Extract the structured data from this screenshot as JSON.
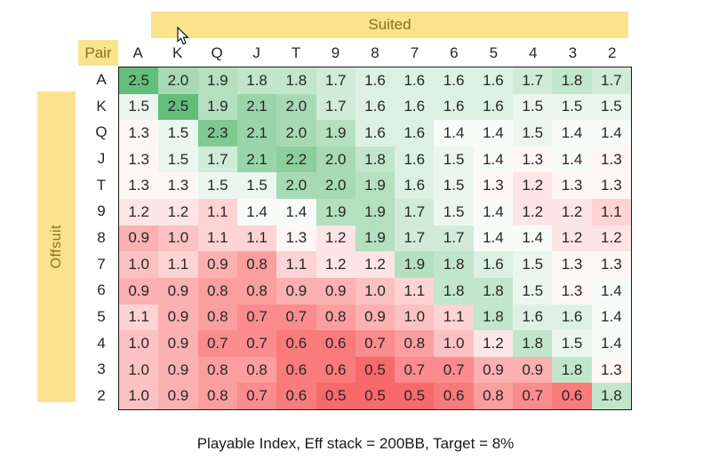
{
  "banners": {
    "suited": "Suited",
    "offsuit": "Offsuit",
    "pair": "Pair"
  },
  "caption": "Playable Index, Eff stack = 200BB, Target = 8%",
  "colors": {
    "banner_bg": "#FBE28D",
    "banner_text": "#8F701C",
    "grid_border": "#1A1A1A",
    "cell_text": "#262626"
  },
  "chart_data": {
    "type": "heatmap",
    "title": "Playable Index, Eff stack = 200BB, Target = 8%",
    "columns": [
      "A",
      "K",
      "Q",
      "J",
      "T",
      "9",
      "8",
      "7",
      "6",
      "5",
      "4",
      "3",
      "2"
    ],
    "rows": [
      "A",
      "K",
      "Q",
      "J",
      "T",
      "9",
      "8",
      "7",
      "6",
      "5",
      "4",
      "3",
      "2"
    ],
    "upper_triangle_label": "Suited",
    "lower_triangle_label": "Offsuit",
    "diagonal_label": "Pair",
    "value_format": "0.0",
    "values": [
      [
        2.5,
        2.0,
        1.9,
        1.8,
        1.8,
        1.7,
        1.6,
        1.6,
        1.6,
        1.6,
        1.7,
        1.8,
        1.7
      ],
      [
        1.5,
        2.5,
        1.9,
        2.1,
        2.0,
        1.7,
        1.6,
        1.6,
        1.6,
        1.6,
        1.5,
        1.5,
        1.5
      ],
      [
        1.3,
        1.5,
        2.3,
        2.1,
        2.0,
        1.9,
        1.6,
        1.6,
        1.4,
        1.4,
        1.5,
        1.4,
        1.4
      ],
      [
        1.3,
        1.5,
        1.7,
        2.1,
        2.2,
        2.0,
        1.8,
        1.6,
        1.5,
        1.4,
        1.3,
        1.4,
        1.3
      ],
      [
        1.3,
        1.3,
        1.5,
        1.5,
        2.0,
        2.0,
        1.9,
        1.6,
        1.5,
        1.3,
        1.2,
        1.3,
        1.3
      ],
      [
        1.2,
        1.2,
        1.1,
        1.4,
        1.4,
        1.9,
        1.9,
        1.7,
        1.5,
        1.4,
        1.2,
        1.2,
        1.1
      ],
      [
        0.9,
        1.0,
        1.1,
        1.1,
        1.3,
        1.2,
        1.9,
        1.7,
        1.7,
        1.4,
        1.4,
        1.2,
        1.2
      ],
      [
        1.0,
        1.1,
        0.9,
        0.8,
        1.1,
        1.2,
        1.2,
        1.9,
        1.8,
        1.6,
        1.5,
        1.3,
        1.3
      ],
      [
        0.9,
        0.9,
        0.8,
        0.8,
        0.9,
        0.9,
        1.0,
        1.1,
        1.8,
        1.8,
        1.5,
        1.3,
        1.4
      ],
      [
        1.1,
        0.9,
        0.8,
        0.7,
        0.7,
        0.8,
        0.9,
        1.0,
        1.1,
        1.8,
        1.6,
        1.6,
        1.4
      ],
      [
        1.0,
        0.9,
        0.7,
        0.7,
        0.6,
        0.6,
        0.7,
        0.8,
        1.0,
        1.2,
        1.8,
        1.5,
        1.4
      ],
      [
        1.0,
        0.9,
        0.8,
        0.8,
        0.6,
        0.6,
        0.5,
        0.7,
        0.7,
        0.9,
        0.9,
        1.8,
        1.3
      ],
      [
        1.0,
        0.9,
        0.8,
        0.7,
        0.6,
        0.5,
        0.5,
        0.5,
        0.6,
        0.8,
        0.7,
        0.6,
        1.8
      ]
    ],
    "color_scale": {
      "min_value": 0.5,
      "min_color": "#F8696B",
      "mid_value": 1.35,
      "mid_color": "#FFFFFF",
      "max_value": 2.5,
      "max_color": "#63BE7B"
    }
  }
}
